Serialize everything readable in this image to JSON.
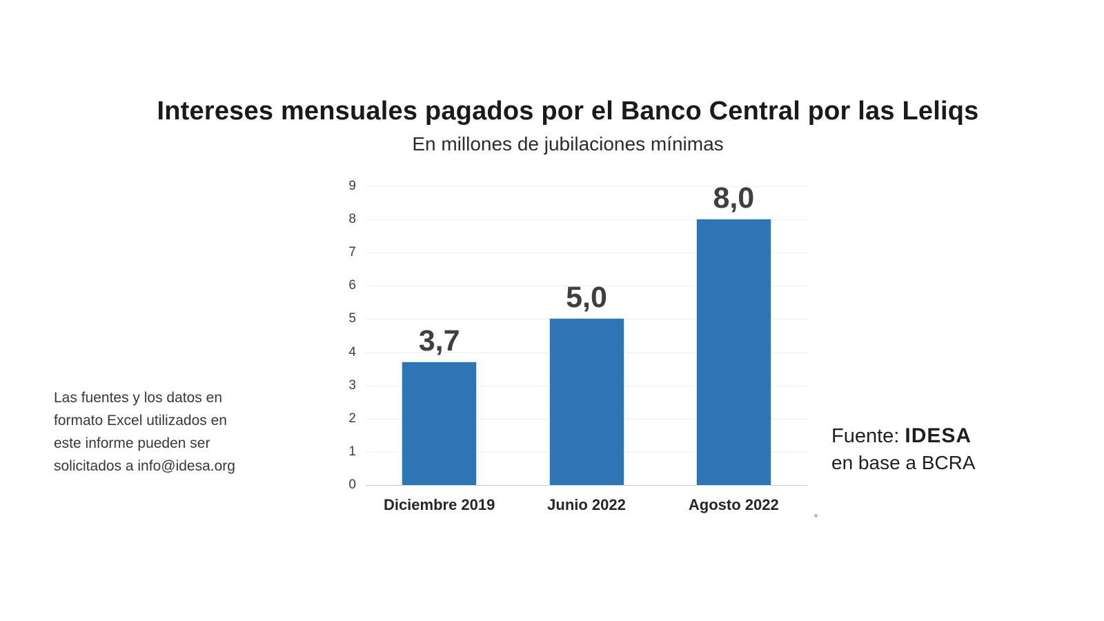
{
  "title": "Intereses mensuales pagados por el Banco Central por las Leliqs",
  "subtitle": "En millones de jubilaciones mínimas",
  "note_left": {
    "lines": [
      "Las fuentes y los datos en",
      "formato Excel utilizados en",
      "este informe pueden ser",
      "solicitados a info@idesa.org"
    ]
  },
  "source": {
    "prefix": "Fuente:",
    "name": "IDESA",
    "secondary": "en base a BCRA"
  },
  "chart_data": {
    "type": "bar",
    "title": "Intereses mensuales pagados por el Banco Central por las Leliqs",
    "subtitle": "En millones de jubilaciones mínimas",
    "categories": [
      "Diciembre 2019",
      "Junio 2022",
      "Agosto 2022"
    ],
    "values": [
      3.7,
      5.0,
      8.0
    ],
    "value_labels": [
      "3,7",
      "5,0",
      "8,0"
    ],
    "xlabel": "",
    "ylabel": "",
    "ylim": [
      0,
      9
    ],
    "yticks": [
      0,
      1,
      2,
      3,
      4,
      5,
      6,
      7,
      8,
      9
    ],
    "grid": true,
    "legend": false,
    "bar_color": "#2E75B6",
    "value_label_color": "#3F3F3F",
    "tick_label_color": "#3D3D3D",
    "category_label_color": "#262626"
  }
}
